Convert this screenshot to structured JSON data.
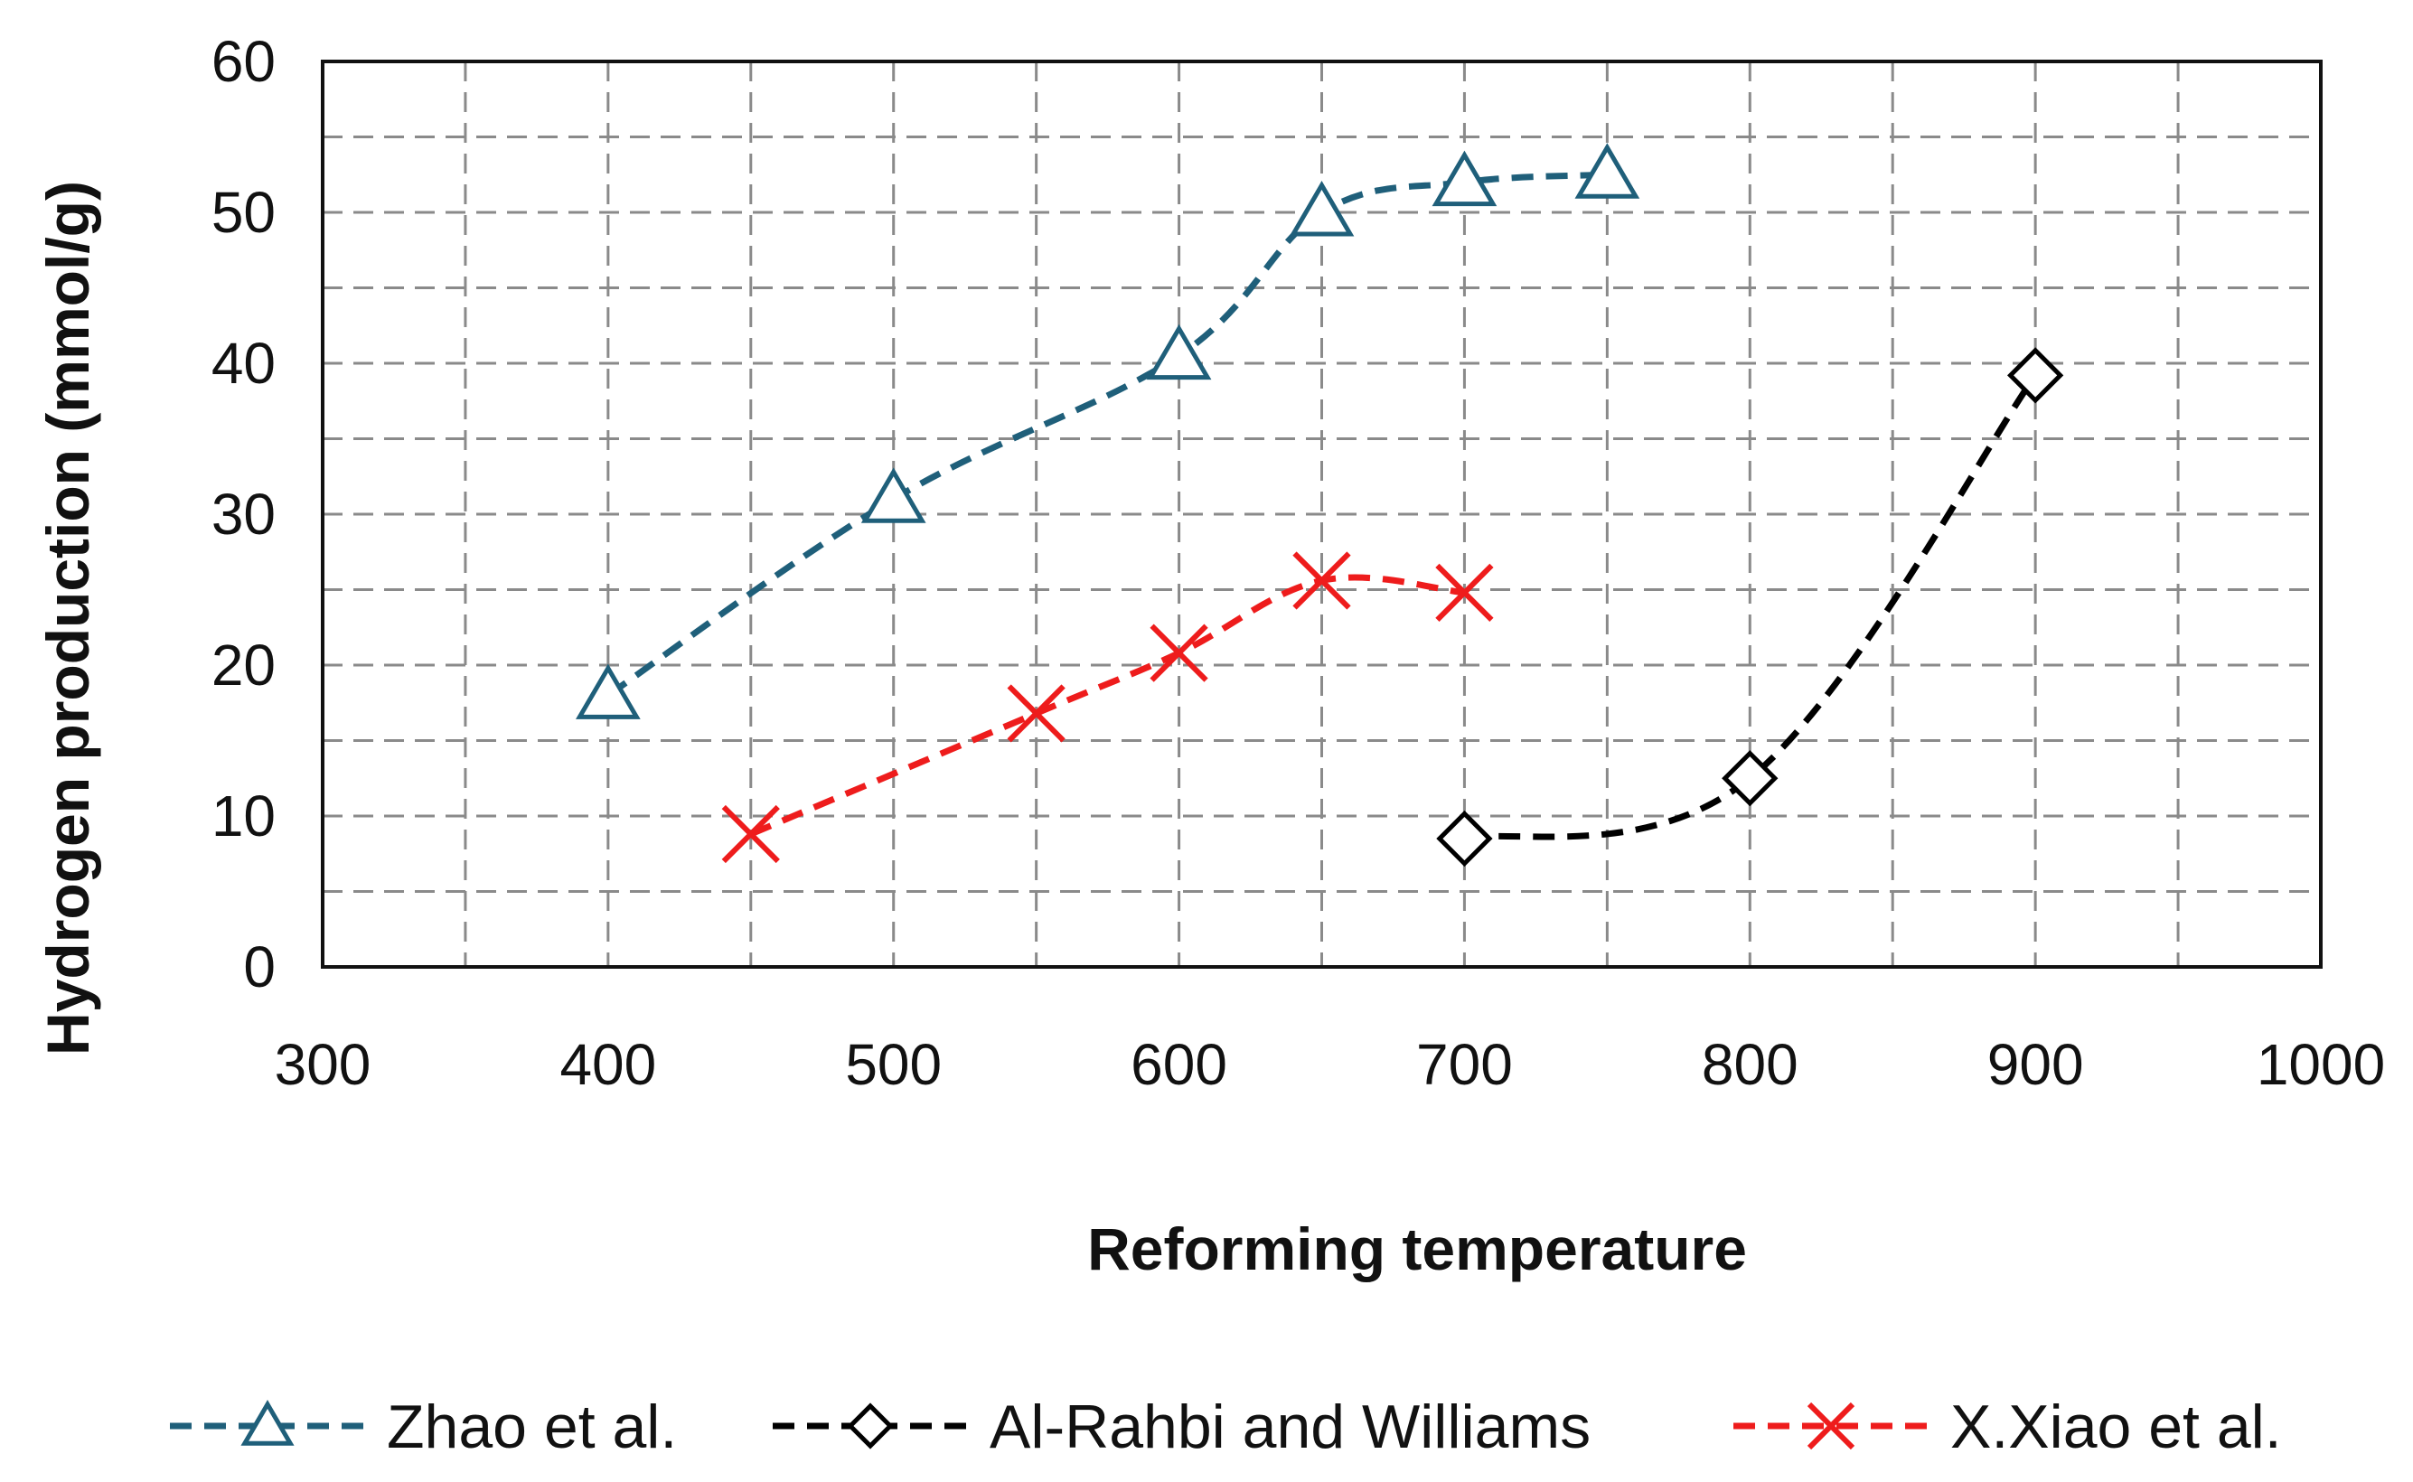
{
  "chart_data": {
    "type": "line",
    "title": "",
    "xlabel": "Reforming temperature",
    "ylabel": "Hydrogen production (mmol/g)",
    "xlim": [
      300,
      1000
    ],
    "ylim": [
      0,
      60
    ],
    "x_ticks": [
      "300",
      "400",
      "500",
      "600",
      "700",
      "800",
      "900",
      "1000"
    ],
    "y_ticks": [
      "0",
      "10",
      "20",
      "30",
      "40",
      "50",
      "60"
    ],
    "grid": true,
    "grid_style": "dashed",
    "legend_position": "bottom",
    "series": [
      {
        "name": "Zhao et al.",
        "color": "#1f5f7a",
        "marker": "triangle",
        "line": "dashed",
        "x": [
          400,
          500,
          600,
          650,
          700,
          750
        ],
        "y": [
          18,
          31,
          40.5,
          50,
          52,
          52.5
        ]
      },
      {
        "name": "Al-Rahbi and Williams",
        "color": "#000000",
        "marker": "diamond",
        "line": "dashed",
        "x": [
          700,
          800,
          900
        ],
        "y": [
          8.5,
          12.5,
          39.2
        ]
      },
      {
        "name": "X.Xiao et al.",
        "color": "#ee1c1c",
        "marker": "x",
        "line": "dashed",
        "x": [
          450,
          550,
          600,
          650,
          700
        ],
        "y": [
          8.8,
          16.8,
          20.8,
          25.6,
          24.8
        ]
      }
    ]
  }
}
